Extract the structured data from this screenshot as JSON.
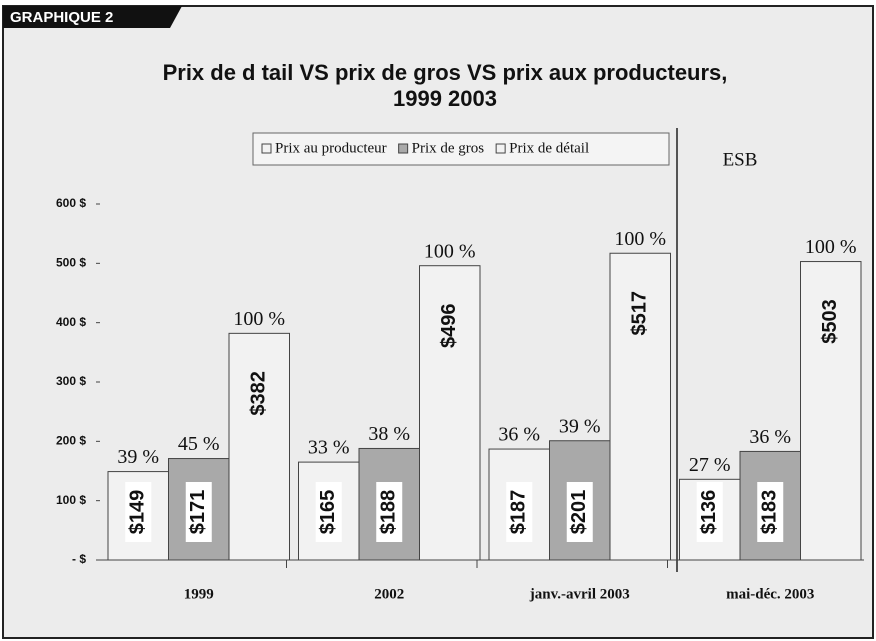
{
  "header": "GRAPHIQUE 2",
  "chart_data": {
    "type": "bar",
    "title": "Prix de d tail VS prix de gros VS  prix aux producteurs,",
    "subtitle": "1999   2003",
    "annotation": "ESB",
    "categories": [
      "1999",
      "2002",
      "janv.-avril 2003",
      "mai-déc. 2003"
    ],
    "series": [
      {
        "name": "Prix au producteur",
        "color": "#f2f2f2",
        "values": [
          149,
          165,
          187,
          136
        ],
        "value_labels": [
          "$149",
          "$165",
          "$187",
          "$136"
        ],
        "percent_labels": [
          "39 %",
          "33 %",
          "36 %",
          "27 %"
        ]
      },
      {
        "name": "Prix de gros",
        "color": "#a9a9a9",
        "values": [
          171,
          188,
          201,
          183
        ],
        "value_labels": [
          "$171",
          "$188",
          "$201",
          "$183"
        ],
        "percent_labels": [
          "45 %",
          "38 %",
          "39 %",
          "36 %"
        ]
      },
      {
        "name": "Prix de détail",
        "color": "#f2f2f2",
        "values": [
          382,
          496,
          517,
          503
        ],
        "value_labels": [
          "$382",
          "$496",
          "$517",
          "$503"
        ],
        "percent_labels": [
          "100 %",
          "100 %",
          "100 %",
          "100 %"
        ]
      }
    ],
    "ylim": [
      0,
      600
    ],
    "yticks": [
      {
        "value": 0,
        "label": "-  $"
      },
      {
        "value": 100,
        "label": "100 $"
      },
      {
        "value": 200,
        "label": "200 $"
      },
      {
        "value": 300,
        "label": "300 $"
      },
      {
        "value": 400,
        "label": "400 $"
      },
      {
        "value": 500,
        "label": "500 $"
      },
      {
        "value": 600,
        "label": "600 $"
      }
    ],
    "grid": false
  }
}
